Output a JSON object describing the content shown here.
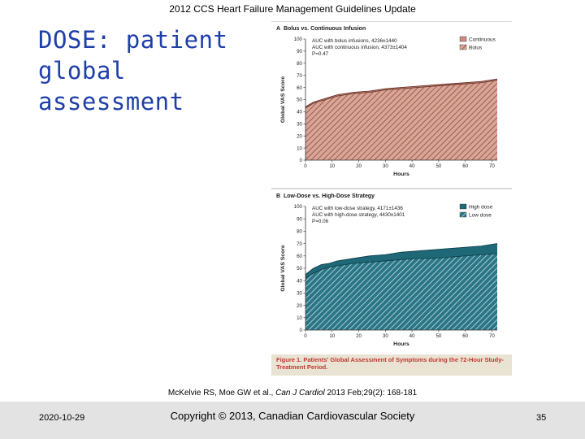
{
  "slide": {
    "header": "2012 CCS Heart Failure Management Guidelines Update",
    "title": "DOSE: patient global assessment",
    "citation": {
      "authors": "McKelvie RS, Moe GW et al., ",
      "journal": "Can J Cardiol",
      "rest": " 2013 Feb;29(2): 168-181"
    },
    "footer": {
      "date": "2020-10-29",
      "copyright": "Copyright © 2013, Canadian Cardiovascular Society",
      "page": "35"
    }
  },
  "figure": {
    "caption": "Figure 1. Patients' Global Assessment of Symptoms during the 72-Hour Study-Treatment Period.",
    "colors": {
      "continuous": "#c98c7e",
      "bolus_hatch": "#8a4b3e",
      "high_dose": "#1f6878",
      "low_dose_hatch": "#c7dfe4"
    }
  },
  "chart_data": [
    {
      "type": "area",
      "panel_label": "A",
      "title": "Bolus vs. Continuous Infusion",
      "xlabel": "Hours",
      "ylabel": "Global VAS Score",
      "xlim": [
        0,
        72
      ],
      "ylim": [
        0,
        100
      ],
      "xticks": [
        0,
        10,
        20,
        30,
        40,
        50,
        60,
        70
      ],
      "yticks": [
        0,
        10,
        20,
        30,
        40,
        50,
        60,
        70,
        80,
        90,
        100
      ],
      "annotations": [
        "AUC with bolus infusions, 4236±1440",
        "AUC with continuous infusion, 4373±1404",
        "P=0.47"
      ],
      "legend_position": "top-right",
      "x": [
        0,
        3,
        6,
        9,
        12,
        18,
        24,
        30,
        36,
        42,
        48,
        54,
        60,
        66,
        72
      ],
      "series": [
        {
          "name": "Continuous",
          "values": [
            44,
            48,
            50,
            52,
            54,
            56,
            57,
            59,
            60,
            61,
            62,
            63,
            64,
            65,
            67
          ]
        },
        {
          "name": "Bolus",
          "values": [
            43,
            47,
            49,
            51,
            53,
            55,
            56,
            58,
            59,
            60,
            61,
            62,
            63,
            64,
            66
          ]
        }
      ]
    },
    {
      "type": "area",
      "panel_label": "B",
      "title": "Low-Dose vs. High-Dose Strategy",
      "xlabel": "Hours",
      "ylabel": "Global VAS Score",
      "xlim": [
        0,
        72
      ],
      "ylim": [
        0,
        100
      ],
      "xticks": [
        0,
        10,
        20,
        30,
        40,
        50,
        60,
        70
      ],
      "yticks": [
        0,
        10,
        20,
        30,
        40,
        50,
        60,
        70,
        80,
        90,
        100
      ],
      "annotations": [
        "AUC with low-dose strategy, 4171±1436",
        "AUC with high-dose strategy, 4430±1401",
        "P=0.06"
      ],
      "legend_position": "top-right",
      "x": [
        0,
        3,
        6,
        9,
        12,
        18,
        24,
        30,
        36,
        42,
        48,
        54,
        60,
        66,
        72
      ],
      "series": [
        {
          "name": "High dose",
          "values": [
            45,
            50,
            53,
            54,
            56,
            58,
            60,
            61,
            63,
            64,
            65,
            66,
            67,
            68,
            70
          ]
        },
        {
          "name": "Low dose",
          "values": [
            42,
            46,
            49,
            51,
            52,
            54,
            55,
            56,
            57,
            58,
            58,
            59,
            60,
            61,
            62
          ]
        }
      ]
    }
  ]
}
